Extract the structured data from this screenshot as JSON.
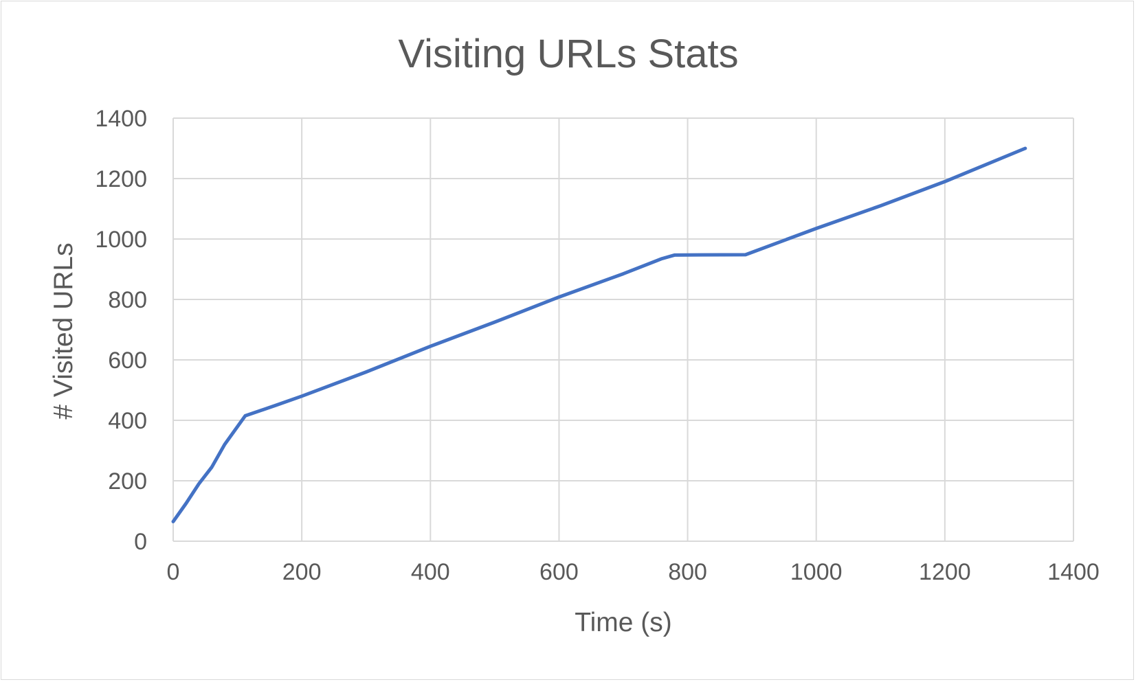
{
  "chart_data": {
    "type": "line",
    "title": "Visiting URLs Stats",
    "xlabel": "Time (s)",
    "ylabel": "# Visited URLs",
    "xlim": [
      0,
      1400
    ],
    "ylim": [
      0,
      1400
    ],
    "x_ticks": [
      0,
      200,
      400,
      600,
      800,
      1000,
      1200,
      1400
    ],
    "y_ticks": [
      0,
      200,
      400,
      600,
      800,
      1000,
      1200,
      1400
    ],
    "grid": true,
    "legend": "none",
    "series": [
      {
        "color": "#4472c4",
        "points": [
          [
            0,
            65
          ],
          [
            20,
            125
          ],
          [
            40,
            190
          ],
          [
            60,
            245
          ],
          [
            80,
            320
          ],
          [
            112,
            415
          ],
          [
            160,
            450
          ],
          [
            200,
            480
          ],
          [
            300,
            560
          ],
          [
            400,
            645
          ],
          [
            500,
            725
          ],
          [
            600,
            808
          ],
          [
            700,
            885
          ],
          [
            760,
            935
          ],
          [
            780,
            947
          ],
          [
            890,
            948
          ],
          [
            1000,
            1035
          ],
          [
            1100,
            1110
          ],
          [
            1200,
            1190
          ],
          [
            1325,
            1300
          ]
        ]
      }
    ]
  }
}
